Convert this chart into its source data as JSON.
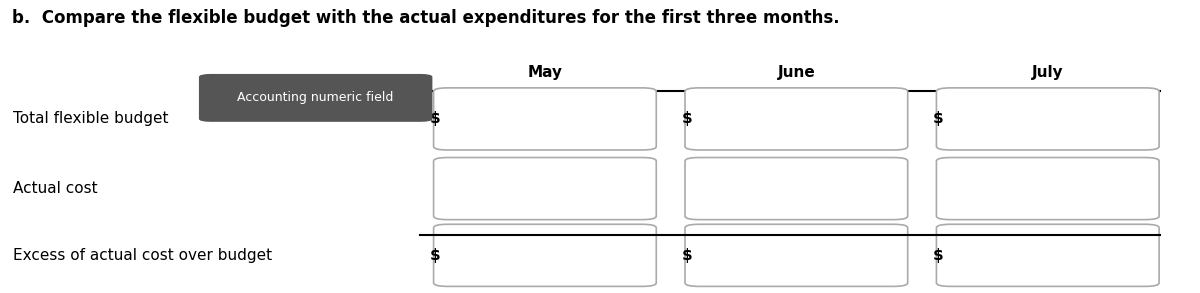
{
  "title": "b.  Compare the flexible budget with the actual expenditures for the first three months.",
  "title_fontsize": 12,
  "columns": [
    "May",
    "June",
    "July"
  ],
  "rows": [
    "Total flexible budget",
    "Actual cost",
    "Excess of actual cost over budget"
  ],
  "has_dollar": [
    true,
    false,
    true
  ],
  "tooltip_text": "Accounting numeric field",
  "tooltip_bg": "#555555",
  "tooltip_fg": "#ffffff",
  "bg_color": "#ffffff",
  "col_header_fontsize": 11,
  "row_label_fontsize": 11,
  "box_fill": "#ffffff",
  "box_edge": "#aaaaaa"
}
